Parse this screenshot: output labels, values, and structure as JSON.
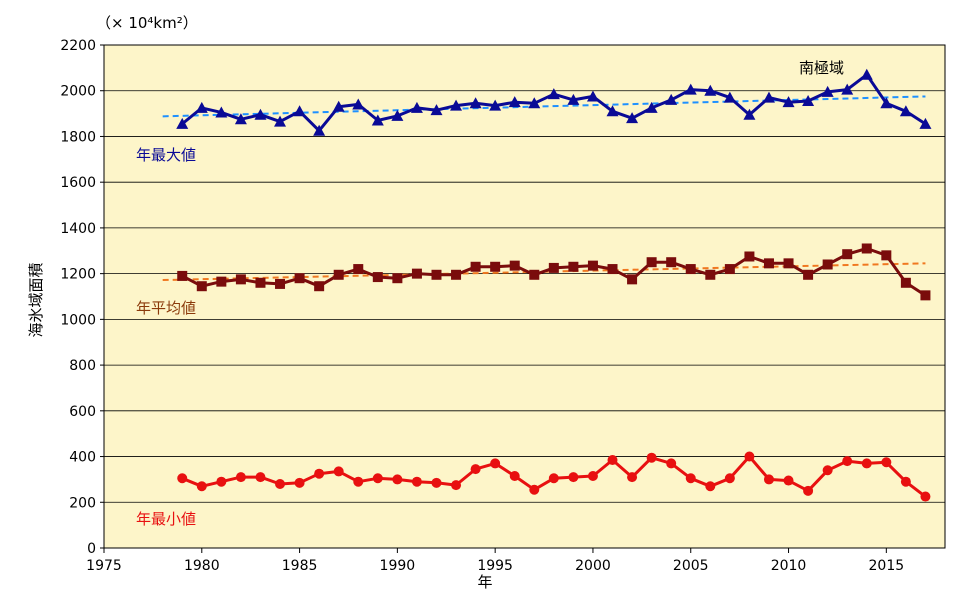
{
  "chart_data": {
    "type": "line",
    "unit_label": "（× 10⁴km²）",
    "ylabel": "海氷域面積",
    "xlabel": "年",
    "region_label": "南極域",
    "xlim": [
      1975,
      2018
    ],
    "ylim": [
      0,
      2200
    ],
    "x_ticks": [
      1975,
      1980,
      1985,
      1990,
      1995,
      2000,
      2005,
      2010,
      2015
    ],
    "y_ticks": [
      0,
      200,
      400,
      600,
      800,
      1000,
      1200,
      1400,
      1600,
      1800,
      2000,
      2200
    ],
    "grid": true,
    "background": "#fdf5c9",
    "x": [
      1979,
      1980,
      1981,
      1982,
      1983,
      1984,
      1985,
      1986,
      1987,
      1988,
      1989,
      1990,
      1991,
      1992,
      1993,
      1994,
      1995,
      1996,
      1997,
      1998,
      1999,
      2000,
      2001,
      2002,
      2003,
      2004,
      2005,
      2006,
      2007,
      2008,
      2009,
      2010,
      2011,
      2012,
      2013,
      2014,
      2015,
      2016,
      2017
    ],
    "series": [
      {
        "name": "年最大値",
        "color": "#0a0a96",
        "marker": "triangle",
        "values": [
          1855,
          1925,
          1905,
          1875,
          1895,
          1865,
          1910,
          1825,
          1930,
          1940,
          1870,
          1890,
          1925,
          1915,
          1935,
          1945,
          1935,
          1950,
          1945,
          1985,
          1960,
          1975,
          1910,
          1880,
          1925,
          1960,
          2005,
          2000,
          1970,
          1895,
          1970,
          1950,
          1955,
          1995,
          2005,
          2070,
          1945,
          1910,
          1855
        ],
        "trend": {
          "color": "#1e90ff",
          "start": [
            1978,
            1888
          ],
          "end": [
            2017,
            1975
          ]
        }
      },
      {
        "name": "年平均値",
        "color": "#7a0c0c",
        "marker": "square",
        "values": [
          1190,
          1145,
          1165,
          1175,
          1160,
          1155,
          1180,
          1145,
          1195,
          1220,
          1185,
          1180,
          1200,
          1195,
          1195,
          1230,
          1230,
          1235,
          1195,
          1225,
          1230,
          1235,
          1220,
          1175,
          1250,
          1250,
          1220,
          1195,
          1220,
          1275,
          1245,
          1245,
          1195,
          1240,
          1285,
          1310,
          1280,
          1160,
          1105
        ],
        "trend": {
          "color": "#f07820",
          "start": [
            1978,
            1172
          ],
          "end": [
            2017,
            1245
          ]
        }
      },
      {
        "name": "年最小値",
        "color": "#e81010",
        "marker": "circle",
        "values": [
          305,
          270,
          290,
          310,
          310,
          280,
          285,
          325,
          335,
          290,
          305,
          300,
          290,
          285,
          275,
          345,
          370,
          315,
          255,
          305,
          310,
          315,
          385,
          310,
          395,
          370,
          305,
          270,
          305,
          400,
          300,
          295,
          250,
          340,
          380,
          370,
          375,
          290,
          225
        ]
      }
    ]
  }
}
